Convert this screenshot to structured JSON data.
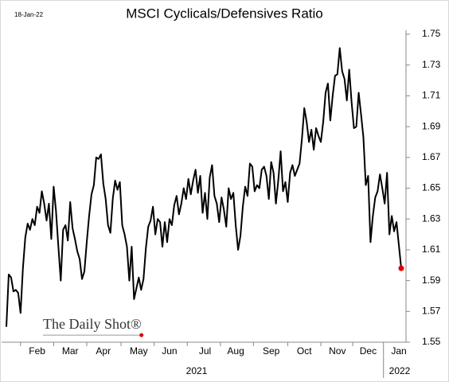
{
  "chart_data": {
    "type": "line",
    "title": "MSCI Cyclicals/Defensives Ratio",
    "date_label": "18-Jan-22",
    "watermark": "The Daily Shot®",
    "x_group_labels": [
      "2021",
      "2022"
    ],
    "categories": [
      null,
      null,
      null,
      null,
      null,
      null,
      null,
      null,
      null,
      null,
      null,
      null,
      null,
      "Feb",
      null,
      null,
      null,
      null,
      null,
      null,
      null,
      null,
      null,
      null,
      null,
      null,
      null,
      "Mar",
      null,
      null,
      null,
      null,
      null,
      null,
      null,
      null,
      null,
      null,
      null,
      null,
      null,
      "Apr",
      null,
      null,
      null,
      null,
      null,
      null,
      null,
      null,
      null,
      null,
      null,
      null,
      null,
      null,
      "May",
      null,
      null,
      null,
      null,
      null,
      null,
      null,
      null,
      null,
      null,
      null,
      null,
      "Jun",
      null,
      null,
      null,
      null,
      null,
      null,
      null,
      null,
      null,
      null,
      null,
      null,
      null,
      null,
      "Jul",
      null,
      null,
      null,
      null,
      null,
      null,
      null,
      null,
      null,
      null,
      null,
      null,
      "Aug",
      null,
      null,
      null,
      null,
      null,
      null,
      null,
      null,
      null,
      null,
      null,
      null,
      null,
      null,
      "Sep",
      null,
      null,
      null,
      null,
      null,
      null,
      null,
      null,
      null,
      null,
      null,
      null,
      null,
      "Oct",
      null,
      null,
      null,
      null,
      null,
      null,
      null,
      null,
      null,
      null,
      null,
      null,
      null,
      "Nov",
      null,
      null,
      null,
      null,
      null,
      null,
      null,
      null,
      null,
      null,
      null,
      null,
      "Dec",
      null,
      null,
      null,
      null,
      null,
      null,
      null,
      null,
      null,
      null,
      null,
      null,
      "Jan",
      null
    ],
    "values": [
      1.56,
      1.594,
      1.592,
      1.583,
      1.584,
      1.582,
      1.569,
      1.598,
      1.618,
      1.627,
      1.623,
      1.63,
      1.626,
      1.638,
      1.634,
      1.648,
      1.64,
      1.629,
      1.64,
      1.617,
      1.651,
      1.635,
      1.612,
      1.59,
      1.623,
      1.626,
      1.616,
      1.641,
      1.624,
      1.617,
      1.609,
      1.604,
      1.591,
      1.596,
      1.615,
      1.632,
      1.646,
      1.652,
      1.67,
      1.669,
      1.672,
      1.653,
      1.643,
      1.626,
      1.621,
      1.643,
      1.655,
      1.649,
      1.654,
      1.626,
      1.62,
      1.612,
      1.59,
      1.612,
      1.578,
      1.585,
      1.592,
      1.584,
      1.591,
      1.611,
      1.625,
      1.629,
      1.638,
      1.62,
      1.63,
      1.628,
      1.612,
      1.628,
      1.615,
      1.63,
      1.626,
      1.639,
      1.645,
      1.633,
      1.64,
      1.65,
      1.643,
      1.656,
      1.646,
      1.655,
      1.662,
      1.647,
      1.658,
      1.634,
      1.647,
      1.63,
      1.657,
      1.665,
      1.645,
      1.64,
      1.628,
      1.644,
      1.636,
      1.625,
      1.65,
      1.643,
      1.647,
      1.626,
      1.61,
      1.619,
      1.638,
      1.651,
      1.645,
      1.666,
      1.664,
      1.648,
      1.652,
      1.65,
      1.662,
      1.664,
      1.658,
      1.643,
      1.667,
      1.66,
      1.64,
      1.655,
      1.674,
      1.648,
      1.654,
      1.641,
      1.66,
      1.665,
      1.658,
      1.662,
      1.666,
      1.682,
      1.702,
      1.693,
      1.68,
      1.688,
      1.675,
      1.689,
      1.684,
      1.68,
      1.693,
      1.712,
      1.718,
      1.694,
      1.71,
      1.723,
      1.724,
      1.741,
      1.726,
      1.721,
      1.707,
      1.727,
      1.706,
      1.689,
      1.69,
      1.712,
      1.698,
      1.683,
      1.652,
      1.658,
      1.615,
      1.632,
      1.644,
      1.648,
      1.659,
      1.65,
      1.64,
      1.66,
      1.62,
      1.632,
      1.622,
      1.628,
      1.613,
      1.598
    ],
    "color": "#000000",
    "last_point_color": "#e00000",
    "ylim": [
      1.55,
      1.75
    ],
    "yticks": [
      1.55,
      1.57,
      1.59,
      1.61,
      1.63,
      1.65,
      1.67,
      1.69,
      1.71,
      1.73,
      1.75
    ],
    "grid": false
  }
}
